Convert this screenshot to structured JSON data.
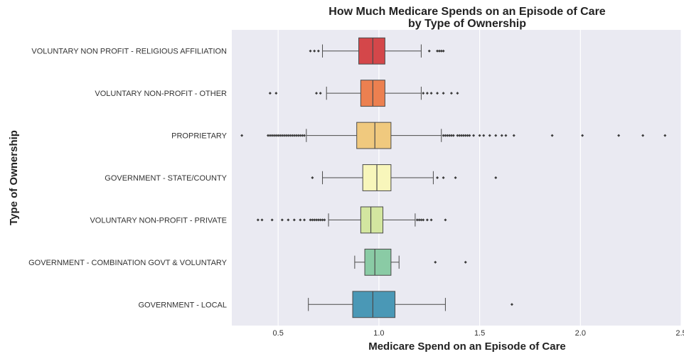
{
  "chart_data": {
    "type": "boxplot",
    "orientation": "horizontal",
    "title_line1": "How Much Medicare Spends on an Episode of Care",
    "title_line2": "by Type of Ownership",
    "xlabel": "Medicare Spend on an Episode of Care",
    "ylabel": "Type of Ownership",
    "xlim": [
      0.27,
      2.5
    ],
    "xticks": [
      0.5,
      1.0,
      1.5,
      2.0,
      2.5
    ],
    "xtick_labels": [
      "0.5",
      "1.0",
      "1.5",
      "2.0",
      "2.5"
    ],
    "grid": true,
    "background": "#eaeaf2",
    "categories": [
      {
        "label": "VOLUNTARY NON PROFIT - RELIGIOUS AFFILIATION",
        "color": "#d4474a",
        "whisker_low": 0.72,
        "q1": 0.9,
        "median": 0.97,
        "q3": 1.03,
        "whisker_high": 1.21,
        "outliers": [
          0.66,
          0.68,
          0.7,
          1.25,
          1.29,
          1.3,
          1.31,
          1.32
        ]
      },
      {
        "label": "VOLUNTARY NON-PROFIT - OTHER",
        "color": "#ec8050",
        "whisker_low": 0.74,
        "q1": 0.91,
        "median": 0.97,
        "q3": 1.03,
        "whisker_high": 1.21,
        "outliers": [
          0.46,
          0.49,
          0.69,
          0.71,
          1.22,
          1.24,
          1.26,
          1.29,
          1.32,
          1.36,
          1.39
        ]
      },
      {
        "label": "PROPRIETARY",
        "color": "#f0c97e",
        "whisker_low": 0.64,
        "q1": 0.89,
        "median": 0.98,
        "q3": 1.06,
        "whisker_high": 1.31,
        "outliers": [
          0.32,
          0.45,
          0.46,
          0.47,
          0.48,
          0.49,
          0.5,
          0.51,
          0.52,
          0.53,
          0.54,
          0.55,
          0.56,
          0.57,
          0.58,
          0.59,
          0.6,
          0.61,
          0.62,
          0.63,
          1.32,
          1.33,
          1.34,
          1.35,
          1.36,
          1.37,
          1.39,
          1.4,
          1.41,
          1.42,
          1.43,
          1.44,
          1.45,
          1.47,
          1.5,
          1.52,
          1.55,
          1.58,
          1.61,
          1.63,
          1.67,
          1.86,
          2.01,
          2.19,
          2.31,
          2.42
        ]
      },
      {
        "label": "GOVERNMENT - STATE/COUNTY",
        "color": "#f8f6bb",
        "whisker_low": 0.72,
        "q1": 0.92,
        "median": 0.99,
        "q3": 1.06,
        "whisker_high": 1.27,
        "outliers": [
          0.67,
          1.29,
          1.32,
          1.38,
          1.58
        ]
      },
      {
        "label": "VOLUNTARY NON-PROFIT - PRIVATE",
        "color": "#d3e6a0",
        "whisker_low": 0.75,
        "q1": 0.91,
        "median": 0.96,
        "q3": 1.02,
        "whisker_high": 1.18,
        "outliers": [
          0.4,
          0.42,
          0.47,
          0.52,
          0.55,
          0.58,
          0.61,
          0.63,
          0.66,
          0.67,
          0.68,
          0.69,
          0.7,
          0.71,
          0.72,
          0.73,
          1.19,
          1.2,
          1.21,
          1.22,
          1.24,
          1.26,
          1.33
        ]
      },
      {
        "label": "GOVERNMENT - COMBINATION GOVT & VOLUNTARY",
        "color": "#8acba5",
        "whisker_low": 0.88,
        "q1": 0.93,
        "median": 0.98,
        "q3": 1.06,
        "whisker_high": 1.1,
        "outliers": [
          1.28,
          1.43
        ]
      },
      {
        "label": "GOVERNMENT - LOCAL",
        "color": "#4a98b6",
        "whisker_low": 0.65,
        "q1": 0.87,
        "median": 0.97,
        "q3": 1.08,
        "whisker_high": 1.33,
        "outliers": [
          1.66
        ]
      }
    ]
  }
}
